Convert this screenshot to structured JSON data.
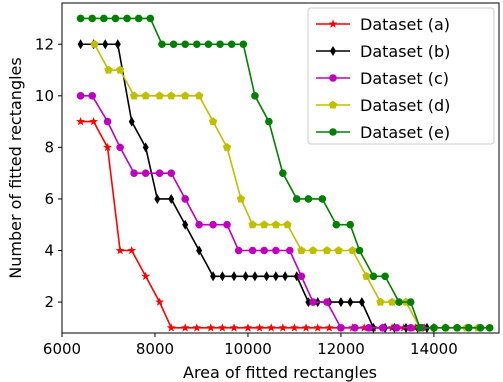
{
  "chart_data": {
    "type": "line",
    "title": "",
    "xlabel": "Area of fitted rectangles",
    "ylabel": "Number of fitted rectangles",
    "xlim": [
      6000,
      15400
    ],
    "ylim": [
      0.8,
      13.6
    ],
    "xticks": [
      6000,
      8000,
      10000,
      12000,
      14000
    ],
    "yticks": [
      2,
      4,
      6,
      8,
      10,
      12
    ],
    "grid": false,
    "legend_position": "top-right",
    "series": [
      {
        "name": "Dataset (a)",
        "color": "#ff0000",
        "marker": "star",
        "points": [
          [
            6400,
            9
          ],
          [
            6680,
            9
          ],
          [
            6980,
            8
          ],
          [
            7250,
            4
          ],
          [
            7500,
            4
          ],
          [
            7800,
            3
          ],
          [
            8100,
            2
          ],
          [
            8350,
            1
          ],
          [
            8650,
            1
          ],
          [
            8900,
            1
          ],
          [
            9200,
            1
          ],
          [
            9450,
            1
          ],
          [
            9700,
            1
          ],
          [
            10000,
            1
          ],
          [
            10250,
            1
          ],
          [
            10500,
            1
          ],
          [
            10750,
            1
          ],
          [
            11000,
            1
          ],
          [
            11250,
            1
          ],
          [
            11500,
            1
          ],
          [
            11750,
            1
          ],
          [
            12000,
            1
          ],
          [
            12250,
            1
          ],
          [
            12500,
            1
          ],
          [
            12700,
            1
          ],
          [
            12900,
            1
          ],
          [
            13100,
            1
          ],
          [
            13350,
            1
          ],
          [
            13600,
            1
          ],
          [
            13800,
            1
          ]
        ]
      },
      {
        "name": "Dataset (b)",
        "color": "#000000",
        "marker": "diamond",
        "points": [
          [
            6400,
            12
          ],
          [
            6680,
            12
          ],
          [
            6930,
            12
          ],
          [
            7200,
            12
          ],
          [
            7500,
            9
          ],
          [
            7800,
            8
          ],
          [
            8050,
            6
          ],
          [
            8350,
            6
          ],
          [
            8650,
            5
          ],
          [
            8950,
            4
          ],
          [
            9250,
            3
          ],
          [
            9450,
            3
          ],
          [
            9700,
            3
          ],
          [
            9950,
            3
          ],
          [
            10150,
            3
          ],
          [
            10400,
            3
          ],
          [
            10600,
            3
          ],
          [
            10800,
            3
          ],
          [
            11050,
            3
          ],
          [
            11300,
            2
          ],
          [
            11500,
            2
          ],
          [
            11750,
            2
          ],
          [
            12000,
            2
          ],
          [
            12200,
            2
          ],
          [
            12450,
            2
          ],
          [
            12700,
            1
          ],
          [
            12950,
            1
          ],
          [
            13150,
            1
          ],
          [
            13400,
            1
          ],
          [
            13650,
            1
          ],
          [
            13850,
            1
          ],
          [
            14000,
            1
          ]
        ]
      },
      {
        "name": "Dataset (c)",
        "color": "#c000c0",
        "marker": "circle",
        "points": [
          [
            6400,
            10
          ],
          [
            6650,
            10
          ],
          [
            6980,
            9
          ],
          [
            7250,
            8
          ],
          [
            7550,
            7
          ],
          [
            7800,
            7
          ],
          [
            8100,
            7
          ],
          [
            8350,
            7
          ],
          [
            8650,
            6
          ],
          [
            8950,
            5
          ],
          [
            9250,
            5
          ],
          [
            9550,
            5
          ],
          [
            9800,
            4
          ],
          [
            10100,
            4
          ],
          [
            10350,
            4
          ],
          [
            10600,
            4
          ],
          [
            10900,
            4
          ],
          [
            11150,
            3
          ],
          [
            11400,
            2
          ],
          [
            11700,
            2
          ],
          [
            12000,
            1
          ],
          [
            12300,
            1
          ],
          [
            12600,
            1
          ],
          [
            12900,
            1
          ],
          [
            13200,
            1
          ],
          [
            13500,
            1
          ],
          [
            13750,
            1
          ]
        ]
      },
      {
        "name": "Dataset (d)",
        "color": "#bfbf00",
        "marker": "pentagon",
        "points": [
          [
            6700,
            12
          ],
          [
            7000,
            11
          ],
          [
            7250,
            11
          ],
          [
            7550,
            10
          ],
          [
            7800,
            10
          ],
          [
            8100,
            10
          ],
          [
            8350,
            10
          ],
          [
            8650,
            10
          ],
          [
            8950,
            10
          ],
          [
            9250,
            9
          ],
          [
            9550,
            8
          ],
          [
            9850,
            6
          ],
          [
            10100,
            5
          ],
          [
            10350,
            5
          ],
          [
            10600,
            5
          ],
          [
            10850,
            5
          ],
          [
            11150,
            4
          ],
          [
            11400,
            4
          ],
          [
            11700,
            4
          ],
          [
            11950,
            4
          ],
          [
            12250,
            4
          ],
          [
            12550,
            3
          ],
          [
            12850,
            2
          ],
          [
            13100,
            2
          ],
          [
            13400,
            2
          ],
          [
            13700,
            1
          ],
          [
            14000,
            1
          ],
          [
            14250,
            1
          ],
          [
            14500,
            1
          ],
          [
            14700,
            1
          ],
          [
            14950,
            1
          ]
        ]
      },
      {
        "name": "Dataset (e)",
        "color": "#008000",
        "marker": "circle",
        "points": [
          [
            6400,
            13
          ],
          [
            6650,
            13
          ],
          [
            6900,
            13
          ],
          [
            7150,
            13
          ],
          [
            7400,
            13
          ],
          [
            7650,
            13
          ],
          [
            7900,
            13
          ],
          [
            8150,
            12
          ],
          [
            8400,
            12
          ],
          [
            8650,
            12
          ],
          [
            8900,
            12
          ],
          [
            9150,
            12
          ],
          [
            9400,
            12
          ],
          [
            9650,
            12
          ],
          [
            9900,
            12
          ],
          [
            10150,
            10
          ],
          [
            10450,
            9
          ],
          [
            10750,
            7
          ],
          [
            11050,
            6
          ],
          [
            11300,
            6
          ],
          [
            11600,
            6
          ],
          [
            11900,
            5
          ],
          [
            12200,
            5
          ],
          [
            12400,
            4
          ],
          [
            12700,
            3
          ],
          [
            12950,
            3
          ],
          [
            13250,
            2
          ],
          [
            13500,
            2
          ],
          [
            13700,
            1
          ],
          [
            14000,
            1
          ],
          [
            14250,
            1
          ],
          [
            14500,
            1
          ],
          [
            14750,
            1
          ],
          [
            15000,
            1
          ],
          [
            15200,
            1
          ]
        ]
      }
    ]
  }
}
